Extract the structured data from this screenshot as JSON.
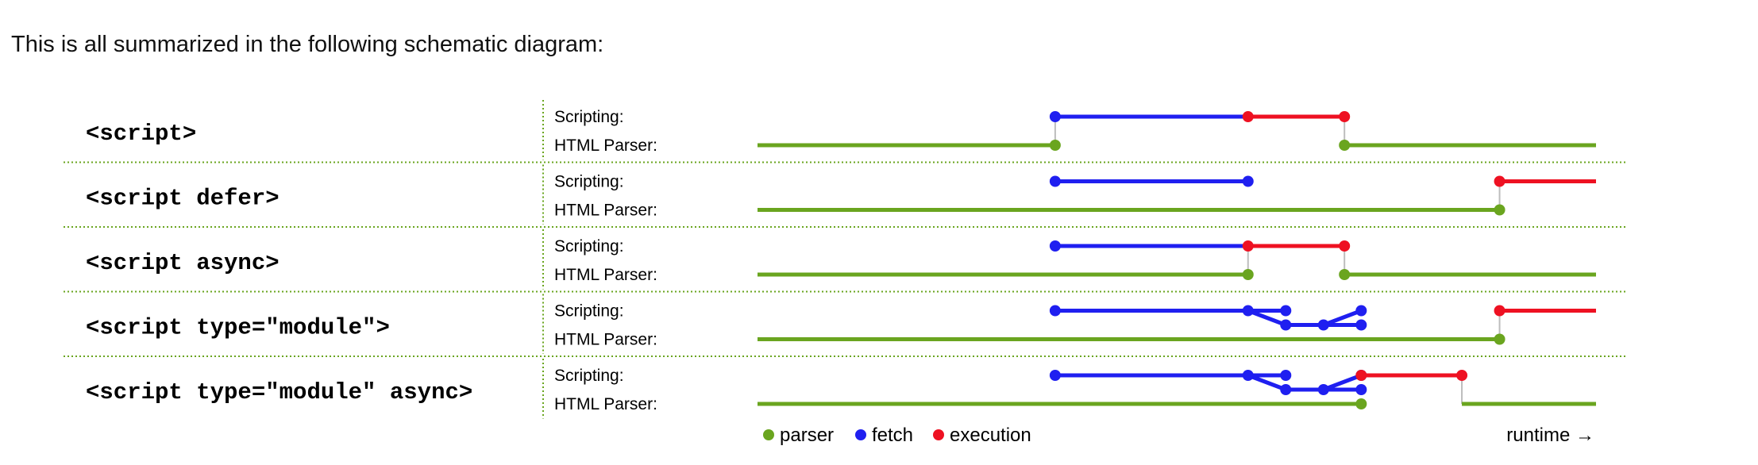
{
  "intro_text": "This is all summarized in the following schematic diagram:",
  "row_labels": {
    "scripting": "Scripting:",
    "parser": "HTML Parser:"
  },
  "colors": {
    "parser": "#6aa51f",
    "fetch": "#1f1ff0",
    "execution": "#ee1122",
    "connector": "#bdbdbd",
    "separator": "#6aa51f"
  },
  "legend": {
    "parser": "parser",
    "fetch": "fetch",
    "execution": "execution",
    "runtime": "runtime →"
  },
  "chart_data": {
    "type": "timeline",
    "time_range": [
      0,
      100
    ],
    "units": "relative runtime",
    "rows": [
      {
        "label": "<script>",
        "parser": [
          [
            0,
            35.5
          ],
          [
            70,
            100
          ]
        ],
        "fetch": [
          [
            35.5,
            58.5
          ]
        ],
        "execution": [
          [
            58.5,
            70
          ]
        ],
        "parser_dots": [
          35.5,
          70
        ],
        "connectors": [
          35.5,
          70
        ],
        "fetch_dots": [
          35.5
        ],
        "execution_dots": [
          58.5,
          70
        ],
        "modules": null
      },
      {
        "label": "<script defer>",
        "parser": [
          [
            0,
            88.5
          ]
        ],
        "fetch": [
          [
            35.5,
            58.5
          ]
        ],
        "execution": [
          [
            88.5,
            100
          ]
        ],
        "parser_dots": [
          88.5
        ],
        "connectors": [
          88.5
        ],
        "fetch_dots": [
          35.5,
          58.5
        ],
        "execution_dots": [
          88.5
        ],
        "modules": null
      },
      {
        "label": "<script async>",
        "parser": [
          [
            0,
            58.5
          ],
          [
            70,
            100
          ]
        ],
        "fetch": [
          [
            35.5,
            58.5
          ]
        ],
        "execution": [
          [
            58.5,
            70
          ]
        ],
        "parser_dots": [
          58.5,
          70
        ],
        "connectors": [
          58.5,
          70
        ],
        "fetch_dots": [
          35.5
        ],
        "execution_dots": [
          58.5,
          70
        ],
        "modules": null
      },
      {
        "label": "<script type=\"module\">",
        "parser": [
          [
            0,
            88.5
          ]
        ],
        "fetch": [
          [
            35.5,
            58.5
          ]
        ],
        "execution": [
          [
            88.5,
            100
          ]
        ],
        "parser_dots": [
          88.5
        ],
        "connectors": [
          88.5
        ],
        "fetch_dots": [
          35.5,
          58.5
        ],
        "execution_dots": [
          88.5
        ],
        "modules": {
          "split": 58.5,
          "mid": 63,
          "mid2": 67.5,
          "join": 72
        }
      },
      {
        "label": "<script type=\"module\" async>",
        "parser": [
          [
            0,
            72
          ],
          [
            84,
            100
          ]
        ],
        "fetch": [
          [
            35.5,
            58.5
          ]
        ],
        "execution": [
          [
            72,
            84
          ]
        ],
        "parser_dots": [
          72
        ],
        "connectors": [
          84
        ],
        "fetch_dots": [
          35.5
        ],
        "execution_dots": [
          72,
          84
        ],
        "modules": {
          "split": 58.5,
          "mid": 63,
          "mid2": 67.5,
          "join": 72
        }
      }
    ]
  }
}
